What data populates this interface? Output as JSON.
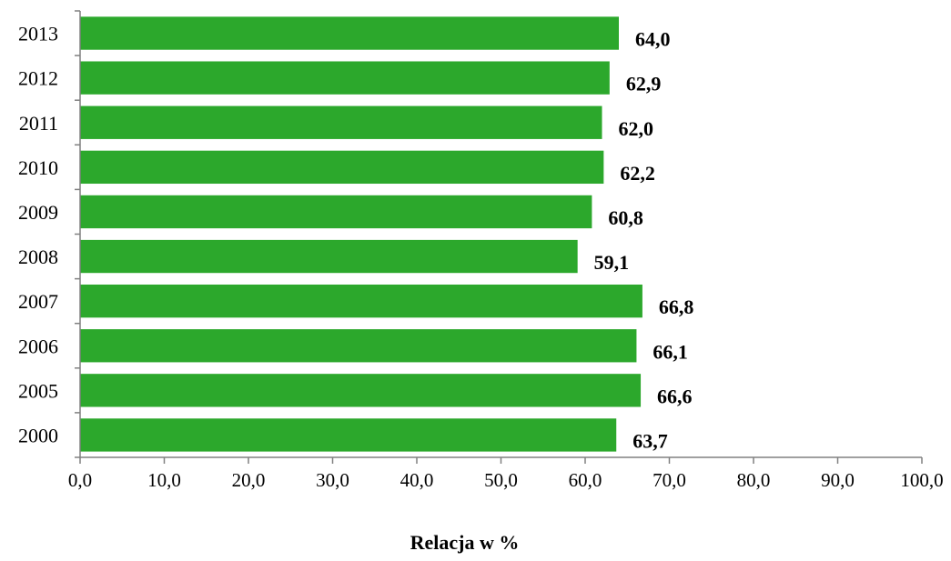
{
  "chart_data": {
    "type": "bar",
    "orientation": "horizontal",
    "categories": [
      "2013",
      "2012",
      "2011",
      "2010",
      "2009",
      "2008",
      "2007",
      "2006",
      "2005",
      "2000"
    ],
    "values": [
      64.0,
      62.9,
      62.0,
      62.2,
      60.8,
      59.1,
      66.8,
      66.1,
      66.6,
      63.7
    ],
    "value_labels": [
      "64,0",
      "62,9",
      "62,0",
      "62,2",
      "60,8",
      "59,1",
      "66,8",
      "66,1",
      "66,6",
      "63,7"
    ],
    "x_ticks": [
      "0,0",
      "10,0",
      "20,0",
      "30,0",
      "40,0",
      "50,0",
      "60,0",
      "70,0",
      "80,0",
      "90,0",
      "100,0"
    ],
    "xlim": [
      0,
      100
    ],
    "xlabel": "Relacja w %",
    "title": "",
    "grid": false,
    "legend": "none",
    "bar_color": "#2ca82c"
  }
}
